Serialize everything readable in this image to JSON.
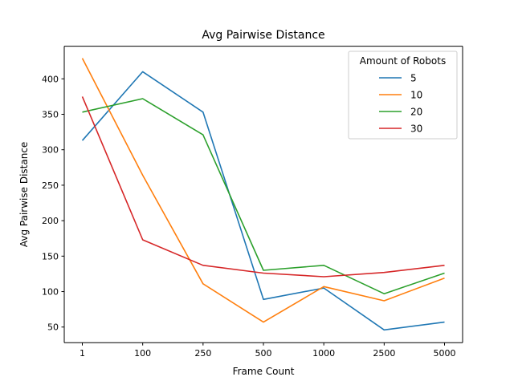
{
  "chart_data": {
    "type": "line",
    "title": "Avg Pairwise Distance",
    "xlabel": "Frame Count",
    "ylabel": "Avg Pairwise Distance",
    "categories": [
      "1",
      "100",
      "250",
      "500",
      "1000",
      "2500",
      "5000"
    ],
    "yticks": [
      50,
      100,
      150,
      200,
      250,
      300,
      350,
      400
    ],
    "ylim": [
      28,
      446
    ],
    "grid": false,
    "legend": {
      "title": "Amount of Robots",
      "position": "top-right"
    },
    "series": [
      {
        "name": "5",
        "color": "#1f77b4",
        "values": [
          313,
          410,
          353,
          89,
          105,
          46,
          57
        ]
      },
      {
        "name": "10",
        "color": "#ff7f0e",
        "values": [
          429,
          264,
          111,
          57,
          107,
          87,
          119
        ]
      },
      {
        "name": "20",
        "color": "#2ca02c",
        "values": [
          353,
          372,
          321,
          130,
          137,
          97,
          126
        ]
      },
      {
        "name": "30",
        "color": "#d62728",
        "values": [
          375,
          173,
          137,
          126,
          121,
          127,
          137
        ]
      }
    ]
  }
}
